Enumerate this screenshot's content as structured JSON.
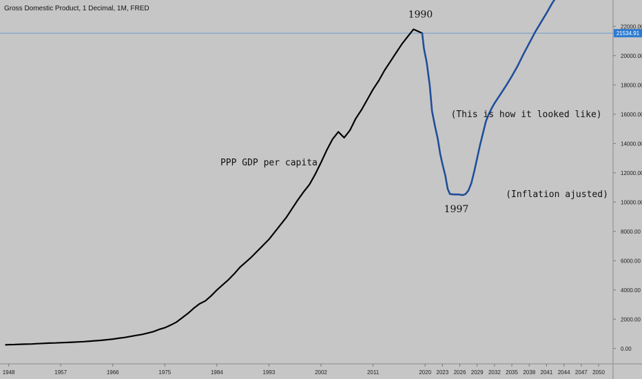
{
  "chart_data": {
    "type": "line",
    "title": "Gross Domestic Product, 1 Decimal, 1M, FRED",
    "xlim": [
      1946.5,
      2052.5
    ],
    "ylim": [
      -1000,
      23800
    ],
    "x_ticks": [
      "1948",
      "1957",
      "1966",
      "1975",
      "1984",
      "1993",
      "2002",
      "2011",
      "2020",
      "2023",
      "2026",
      "2029",
      "2032",
      "2035",
      "2038",
      "2041",
      "2044",
      "2047",
      "2050"
    ],
    "y_ticks": [
      "22000.00",
      "20000.00",
      "18000.00",
      "16000.00",
      "14000.00",
      "12000.00",
      "10000.00",
      "8000.00",
      "6000.00",
      "4000.00",
      "2000.00",
      "0.00"
    ],
    "price_line": {
      "value": 21534.91,
      "label": "21534.91",
      "color": "#4a8fd0"
    },
    "colors": {
      "background": "#c6c6c6",
      "historical": "#000000",
      "projection": "#1f4e9a",
      "price_tag": "#2d7bd1"
    },
    "series": [
      {
        "style": "historical",
        "points": [
          [
            1947.5,
            250
          ],
          [
            1948,
            260
          ],
          [
            1949,
            270
          ],
          [
            1950,
            290
          ],
          [
            1951,
            300
          ],
          [
            1952,
            310
          ],
          [
            1953,
            330
          ],
          [
            1954,
            350
          ],
          [
            1955,
            370
          ],
          [
            1956,
            380
          ],
          [
            1957,
            400
          ],
          [
            1958,
            410
          ],
          [
            1959,
            430
          ],
          [
            1960,
            450
          ],
          [
            1961,
            470
          ],
          [
            1962,
            500
          ],
          [
            1963,
            530
          ],
          [
            1964,
            560
          ],
          [
            1965,
            600
          ],
          [
            1966,
            640
          ],
          [
            1967,
            700
          ],
          [
            1968,
            750
          ],
          [
            1969,
            820
          ],
          [
            1970,
            890
          ],
          [
            1971,
            960
          ],
          [
            1972,
            1050
          ],
          [
            1973,
            1150
          ],
          [
            1974,
            1300
          ],
          [
            1975,
            1420
          ],
          [
            1976,
            1600
          ],
          [
            1977,
            1800
          ],
          [
            1978,
            2100
          ],
          [
            1979,
            2400
          ],
          [
            1980,
            2750
          ],
          [
            1981,
            3050
          ],
          [
            1982,
            3250
          ],
          [
            1983,
            3600
          ],
          [
            1984,
            4000
          ],
          [
            1985,
            4350
          ],
          [
            1986,
            4700
          ],
          [
            1987,
            5100
          ],
          [
            1988,
            5550
          ],
          [
            1989,
            5900
          ],
          [
            1990,
            6250
          ],
          [
            1991,
            6650
          ],
          [
            1992,
            7050
          ],
          [
            1993,
            7450
          ],
          [
            1994,
            7950
          ],
          [
            1995,
            8450
          ],
          [
            1996,
            8950
          ],
          [
            1997,
            9550
          ],
          [
            1998,
            10150
          ],
          [
            1999,
            10700
          ],
          [
            2000,
            11200
          ],
          [
            2001,
            11900
          ],
          [
            2002,
            12700
          ],
          [
            2003,
            13550
          ],
          [
            2004,
            14300
          ],
          [
            2005,
            14800
          ],
          [
            2006,
            14400
          ],
          [
            2007,
            14900
          ],
          [
            2008,
            15700
          ],
          [
            2009,
            16300
          ],
          [
            2010,
            17000
          ],
          [
            2011,
            17700
          ],
          [
            2012,
            18300
          ],
          [
            2013,
            19000
          ],
          [
            2014,
            19600
          ],
          [
            2015,
            20200
          ],
          [
            2016,
            20800
          ],
          [
            2017,
            21300
          ],
          [
            2018,
            21800
          ],
          [
            2019.5,
            21534.91
          ]
        ]
      },
      {
        "style": "projection",
        "points": [
          [
            2019.5,
            21534.91
          ],
          [
            2019.8,
            20500
          ],
          [
            2020.3,
            19500
          ],
          [
            2020.8,
            18000
          ],
          [
            2021.2,
            16200
          ],
          [
            2021.7,
            15200
          ],
          [
            2022.2,
            14300
          ],
          [
            2022.6,
            13300
          ],
          [
            2023.0,
            12600
          ],
          [
            2023.5,
            11800
          ],
          [
            2023.9,
            10900
          ],
          [
            2024.3,
            10550
          ],
          [
            2025,
            10520
          ],
          [
            2025.8,
            10520
          ],
          [
            2026.5,
            10480
          ],
          [
            2027.0,
            10550
          ],
          [
            2027.5,
            10800
          ],
          [
            2028.0,
            11300
          ],
          [
            2028.5,
            12100
          ],
          [
            2029.0,
            13000
          ],
          [
            2029.5,
            13900
          ],
          [
            2030.0,
            14700
          ],
          [
            2030.5,
            15500
          ],
          [
            2031.0,
            16000
          ],
          [
            2031.5,
            16400
          ],
          [
            2032.0,
            16750
          ],
          [
            2033.0,
            17350
          ],
          [
            2034.0,
            17950
          ],
          [
            2035.0,
            18600
          ],
          [
            2036.0,
            19300
          ],
          [
            2037.0,
            20100
          ],
          [
            2038.0,
            20850
          ],
          [
            2039.0,
            21600
          ],
          [
            2040.0,
            22250
          ],
          [
            2041.0,
            22900
          ],
          [
            2042.0,
            23600
          ],
          [
            2042.7,
            24000
          ]
        ]
      }
    ],
    "annotations": [
      {
        "text": "1990",
        "x": 2019.2,
        "y": 22600,
        "kind": "year"
      },
      {
        "text": "1997",
        "x": 2025.4,
        "y": 9300,
        "kind": "year"
      },
      {
        "text": "PPP GDP per capita",
        "x": 1993,
        "y": 12500,
        "kind": "note"
      },
      {
        "text": "(This is how it looked like)",
        "x": 2037.5,
        "y": 15800,
        "kind": "note"
      },
      {
        "text": "(Inflation ajusted)",
        "x": 2042.8,
        "y": 10350,
        "kind": "note"
      }
    ]
  }
}
